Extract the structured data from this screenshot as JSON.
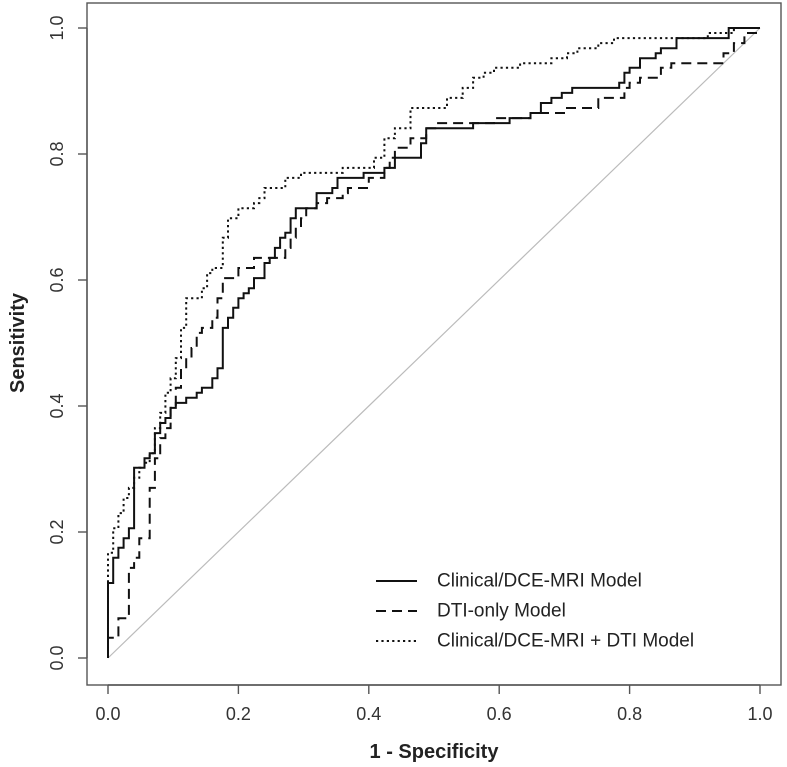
{
  "chart_data": {
    "type": "line",
    "title": "",
    "xlabel": "1 - Specificity",
    "ylabel": "Sensitivity",
    "xlim": [
      0.0,
      1.0
    ],
    "ylim": [
      0.0,
      1.0
    ],
    "xticks": [
      "0.0",
      "0.2",
      "0.4",
      "0.6",
      "0.8",
      "1.0"
    ],
    "yticks": [
      "0.0",
      "0.2",
      "0.4",
      "0.6",
      "0.8",
      "1.0"
    ],
    "legend_position": "bottom-right",
    "reference_line": {
      "from": [
        0,
        0
      ],
      "to": [
        1,
        1
      ],
      "color": "#bbbbbb"
    },
    "series": [
      {
        "name": "Clinical/DCE-MRI Model",
        "style": "solid",
        "color": "#111111",
        "x": [
          0,
          0,
          0.008,
          0.008,
          0.016,
          0.016,
          0.024,
          0.024,
          0.032,
          0.032,
          0.04,
          0.04,
          0.056,
          0.056,
          0.064,
          0.064,
          0.072,
          0.072,
          0.08,
          0.08,
          0.088,
          0.088,
          0.096,
          0.096,
          0.104,
          0.104,
          0.12,
          0.12,
          0.136,
          0.136,
          0.144,
          0.144,
          0.16,
          0.16,
          0.168,
          0.168,
          0.176,
          0.176,
          0.184,
          0.184,
          0.192,
          0.192,
          0.2,
          0.2,
          0.208,
          0.208,
          0.216,
          0.216,
          0.224,
          0.224,
          0.24,
          0.24,
          0.248,
          0.248,
          0.256,
          0.256,
          0.264,
          0.264,
          0.272,
          0.272,
          0.28,
          0.28,
          0.288,
          0.288,
          0.296,
          0.296,
          0.32,
          0.32,
          0.344,
          0.344,
          0.352,
          0.352,
          0.376,
          0.376,
          0.392,
          0.392,
          0.424,
          0.424,
          0.44,
          0.44,
          0.456,
          0.456,
          0.48,
          0.48,
          0.488,
          0.488,
          0.56,
          0.56,
          0.616,
          0.616,
          0.648,
          0.648,
          0.664,
          0.664,
          0.68,
          0.68,
          0.696,
          0.696,
          0.712,
          0.712,
          0.784,
          0.784,
          0.792,
          0.792,
          0.8,
          0.8,
          0.816,
          0.816,
          0.84,
          0.84,
          0.848,
          0.848,
          0.872,
          0.872,
          0.952,
          0.952,
          1.0,
          1.0
        ],
        "y": [
          0,
          0.119,
          0.119,
          0.159,
          0.159,
          0.175,
          0.175,
          0.19,
          0.19,
          0.206,
          0.206,
          0.302,
          0.302,
          0.317,
          0.317,
          0.325,
          0.325,
          0.357,
          0.357,
          0.373,
          0.373,
          0.381,
          0.381,
          0.397,
          0.397,
          0.405,
          0.405,
          0.413,
          0.413,
          0.421,
          0.421,
          0.429,
          0.429,
          0.444,
          0.444,
          0.46,
          0.46,
          0.524,
          0.524,
          0.54,
          0.54,
          0.556,
          0.556,
          0.571,
          0.571,
          0.579,
          0.579,
          0.587,
          0.587,
          0.603,
          0.603,
          0.627,
          0.627,
          0.635,
          0.635,
          0.651,
          0.651,
          0.667,
          0.667,
          0.675,
          0.675,
          0.698,
          0.698,
          0.714,
          0.714,
          0.714,
          0.714,
          0.738,
          0.738,
          0.746,
          0.746,
          0.762,
          0.762,
          0.762,
          0.762,
          0.77,
          0.77,
          0.778,
          0.778,
          0.794,
          0.794,
          0.794,
          0.794,
          0.817,
          0.817,
          0.841,
          0.841,
          0.849,
          0.849,
          0.857,
          0.857,
          0.865,
          0.865,
          0.881,
          0.881,
          0.889,
          0.889,
          0.897,
          0.897,
          0.905,
          0.905,
          0.913,
          0.913,
          0.929,
          0.929,
          0.937,
          0.937,
          0.952,
          0.952,
          0.96,
          0.96,
          0.968,
          0.968,
          0.984,
          0.984,
          1.0,
          1.0,
          1.0
        ]
      },
      {
        "name": "DTI-only Model",
        "style": "dashed",
        "color": "#111111",
        "x": [
          0,
          0,
          0.016,
          0.016,
          0.032,
          0.032,
          0.04,
          0.04,
          0.048,
          0.048,
          0.064,
          0.064,
          0.072,
          0.072,
          0.08,
          0.08,
          0.088,
          0.088,
          0.096,
          0.096,
          0.104,
          0.104,
          0.112,
          0.112,
          0.12,
          0.12,
          0.128,
          0.128,
          0.136,
          0.136,
          0.144,
          0.144,
          0.16,
          0.16,
          0.168,
          0.168,
          0.176,
          0.176,
          0.2,
          0.2,
          0.216,
          0.216,
          0.224,
          0.224,
          0.256,
          0.256,
          0.272,
          0.272,
          0.28,
          0.28,
          0.288,
          0.288,
          0.296,
          0.296,
          0.304,
          0.304,
          0.32,
          0.32,
          0.336,
          0.336,
          0.36,
          0.36,
          0.368,
          0.368,
          0.4,
          0.4,
          0.424,
          0.424,
          0.432,
          0.432,
          0.44,
          0.44,
          0.464,
          0.464,
          0.488,
          0.488,
          0.504,
          0.504,
          0.592,
          0.592,
          0.648,
          0.648,
          0.704,
          0.704,
          0.752,
          0.752,
          0.792,
          0.792,
          0.8,
          0.8,
          0.816,
          0.816,
          0.848,
          0.848,
          0.864,
          0.864,
          0.92,
          0.92,
          0.944,
          0.944,
          0.96,
          0.96,
          0.976,
          0.976,
          1.0,
          1.0
        ],
        "y": [
          0,
          0.032,
          0.032,
          0.063,
          0.063,
          0.143,
          0.143,
          0.159,
          0.159,
          0.19,
          0.19,
          0.27,
          0.27,
          0.317,
          0.317,
          0.349,
          0.349,
          0.365,
          0.365,
          0.397,
          0.397,
          0.429,
          0.429,
          0.46,
          0.46,
          0.476,
          0.476,
          0.492,
          0.492,
          0.516,
          0.516,
          0.524,
          0.524,
          0.54,
          0.54,
          0.571,
          0.571,
          0.603,
          0.603,
          0.619,
          0.619,
          0.619,
          0.619,
          0.635,
          0.635,
          0.635,
          0.635,
          0.651,
          0.651,
          0.667,
          0.667,
          0.683,
          0.683,
          0.698,
          0.698,
          0.714,
          0.714,
          0.722,
          0.722,
          0.73,
          0.73,
          0.738,
          0.738,
          0.746,
          0.746,
          0.762,
          0.762,
          0.778,
          0.778,
          0.794,
          0.794,
          0.81,
          0.81,
          0.825,
          0.825,
          0.841,
          0.841,
          0.849,
          0.849,
          0.857,
          0.857,
          0.865,
          0.865,
          0.873,
          0.873,
          0.889,
          0.889,
          0.905,
          0.905,
          0.913,
          0.913,
          0.921,
          0.921,
          0.937,
          0.937,
          0.944,
          0.944,
          0.944,
          0.944,
          0.96,
          0.96,
          0.976,
          0.976,
          0.992,
          0.992,
          0.992
        ]
      },
      {
        "name": "Clinical/DCE-MRI + DTI Model",
        "style": "dotted",
        "color": "#111111",
        "x": [
          0,
          0,
          0.008,
          0.008,
          0.016,
          0.016,
          0.024,
          0.024,
          0.032,
          0.032,
          0.04,
          0.04,
          0.048,
          0.048,
          0.056,
          0.056,
          0.064,
          0.064,
          0.072,
          0.072,
          0.08,
          0.08,
          0.088,
          0.088,
          0.096,
          0.096,
          0.104,
          0.104,
          0.112,
          0.112,
          0.12,
          0.12,
          0.136,
          0.136,
          0.144,
          0.144,
          0.152,
          0.152,
          0.16,
          0.16,
          0.176,
          0.176,
          0.184,
          0.184,
          0.2,
          0.2,
          0.224,
          0.224,
          0.232,
          0.232,
          0.24,
          0.24,
          0.264,
          0.264,
          0.272,
          0.272,
          0.296,
          0.296,
          0.36,
          0.36,
          0.408,
          0.408,
          0.424,
          0.424,
          0.44,
          0.44,
          0.464,
          0.464,
          0.52,
          0.52,
          0.544,
          0.544,
          0.56,
          0.56,
          0.576,
          0.576,
          0.592,
          0.592,
          0.608,
          0.608,
          0.632,
          0.632,
          0.68,
          0.68,
          0.704,
          0.704,
          0.72,
          0.72,
          0.752,
          0.752,
          0.776,
          0.776,
          0.792,
          0.792,
          0.92,
          0.92,
          0.96,
          0.96,
          1.0
        ],
        "y": [
          0,
          0.167,
          0.167,
          0.206,
          0.206,
          0.23,
          0.23,
          0.254,
          0.254,
          0.27,
          0.27,
          0.286,
          0.286,
          0.302,
          0.302,
          0.31,
          0.31,
          0.325,
          0.325,
          0.365,
          0.365,
          0.389,
          0.389,
          0.421,
          0.421,
          0.444,
          0.444,
          0.476,
          0.476,
          0.524,
          0.524,
          0.571,
          0.571,
          0.571,
          0.571,
          0.587,
          0.587,
          0.611,
          0.611,
          0.619,
          0.619,
          0.667,
          0.667,
          0.698,
          0.698,
          0.714,
          0.714,
          0.722,
          0.722,
          0.73,
          0.73,
          0.746,
          0.746,
          0.746,
          0.746,
          0.762,
          0.762,
          0.77,
          0.77,
          0.778,
          0.778,
          0.794,
          0.794,
          0.825,
          0.825,
          0.841,
          0.841,
          0.873,
          0.873,
          0.889,
          0.889,
          0.905,
          0.905,
          0.921,
          0.921,
          0.929,
          0.929,
          0.937,
          0.937,
          0.937,
          0.937,
          0.944,
          0.944,
          0.952,
          0.952,
          0.96,
          0.96,
          0.968,
          0.968,
          0.976,
          0.976,
          0.984,
          0.984,
          0.984,
          0.984,
          0.992,
          0.992,
          1.0,
          1.0
        ]
      }
    ]
  }
}
